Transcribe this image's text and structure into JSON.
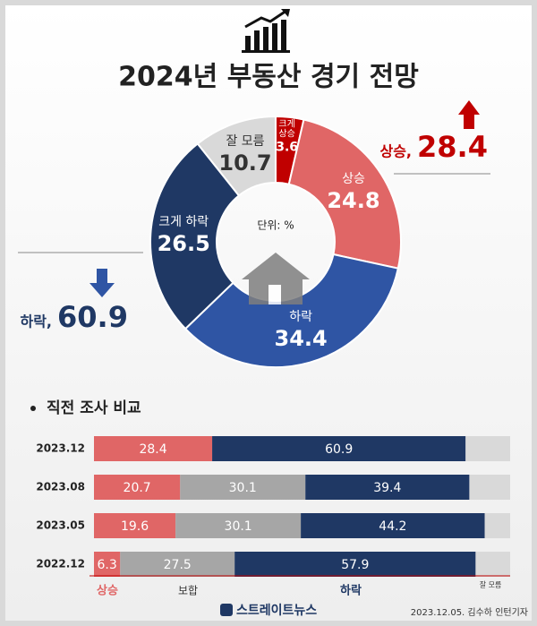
{
  "title": "2024년 부동산 경기 전망",
  "chart_data": [
    {
      "type": "pie",
      "donut": true,
      "unit": "단위: %",
      "categories": [
        "크게 상승",
        "상승",
        "하락",
        "크게 하락",
        "잘 모름"
      ],
      "values": [
        3.6,
        24.8,
        34.4,
        26.5,
        10.7
      ],
      "colors": [
        "#c00000",
        "#e06666",
        "#2f55a4",
        "#1f3864",
        "#d9d9d9"
      ],
      "summary": [
        {
          "label": "상승,",
          "value": 28.4,
          "color": "#c00000"
        },
        {
          "label": "하락,",
          "value": 60.9,
          "color": "#1f3864"
        }
      ]
    },
    {
      "type": "stacked-barh",
      "title": "직전 조사 비교",
      "categories": [
        "2023.12",
        "2023.08",
        "2023.05",
        "2022.12"
      ],
      "xlim": [
        0,
        100
      ],
      "series": [
        {
          "name": "상승",
          "color": "#e06666",
          "values": [
            28.4,
            20.7,
            19.6,
            6.3
          ]
        },
        {
          "name": "보합",
          "color": "#a6a6a6",
          "values": [
            null,
            30.1,
            30.1,
            27.5
          ]
        },
        {
          "name": "하락",
          "color": "#1f3864",
          "values": [
            60.9,
            39.4,
            44.2,
            57.9
          ]
        },
        {
          "name": "잘 모름",
          "color": "#d9d9d9",
          "values": [
            10.7,
            9.8,
            6.1,
            8.3
          ],
          "labeled": false
        }
      ]
    }
  ],
  "footer": {
    "logo": "스트레이트뉴스",
    "credit": "2023.12.05. 김수하 인턴기자"
  }
}
